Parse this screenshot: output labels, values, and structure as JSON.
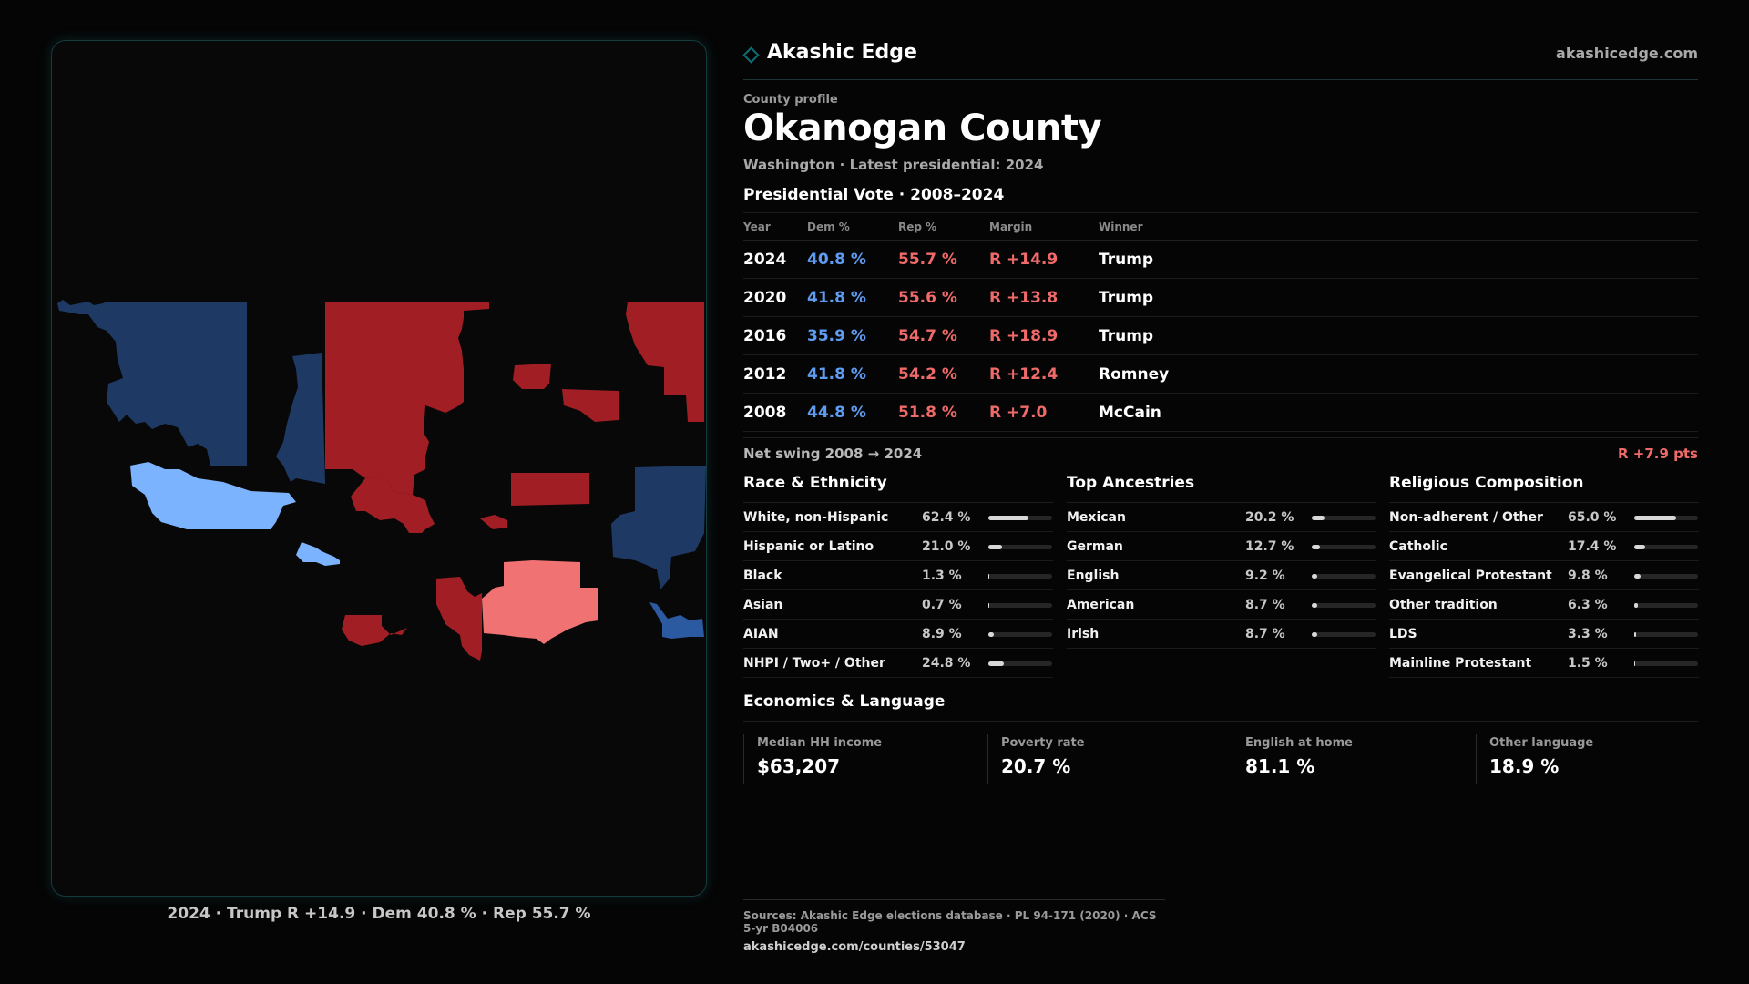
{
  "brand": {
    "name": "Akashic Edge",
    "url": "akashicedge.com"
  },
  "profile": {
    "kicker": "County profile",
    "title": "Okanogan County",
    "subtitle": "Washington · Latest presidential: 2024"
  },
  "map": {
    "caption": "2024 · Trump R +14.9 · Dem 40.8 % · Rep 55.7 %",
    "colors": {
      "dem_dark": "#1e3a64",
      "dem_light": "#7cb3ff",
      "dem_mid": "#2b5aa0",
      "rep_dark": "#a11f24",
      "rep_light": "#f07272"
    }
  },
  "vote": {
    "title": "Presidential Vote · 2008–2024",
    "headers": {
      "year": "Year",
      "dem": "Dem %",
      "rep": "Rep %",
      "margin": "Margin",
      "winner": "Winner"
    },
    "rows": [
      {
        "year": "2024",
        "dem": "40.8 %",
        "rep": "55.7 %",
        "margin": "R +14.9",
        "winner": "Trump"
      },
      {
        "year": "2020",
        "dem": "41.8 %",
        "rep": "55.6 %",
        "margin": "R +13.8",
        "winner": "Trump"
      },
      {
        "year": "2016",
        "dem": "35.9 %",
        "rep": "54.7 %",
        "margin": "R +18.9",
        "winner": "Trump"
      },
      {
        "year": "2012",
        "dem": "41.8 %",
        "rep": "54.2 %",
        "margin": "R +12.4",
        "winner": "Romney"
      },
      {
        "year": "2008",
        "dem": "44.8 %",
        "rep": "51.8 %",
        "margin": "R +7.0",
        "winner": "McCain"
      }
    ],
    "swing_label": "Net swing 2008 → 2024",
    "swing_value": "R +7.9 pts"
  },
  "race": {
    "title": "Race & Ethnicity",
    "rows": [
      {
        "label": "White, non-Hispanic",
        "pct": "62.4 %",
        "value": 62.4
      },
      {
        "label": "Hispanic or Latino",
        "pct": "21.0 %",
        "value": 21.0
      },
      {
        "label": "Black",
        "pct": "1.3 %",
        "value": 1.3
      },
      {
        "label": "Asian",
        "pct": "0.7 %",
        "value": 0.7
      },
      {
        "label": "AIAN",
        "pct": "8.9 %",
        "value": 8.9
      },
      {
        "label": "NHPI / Two+ / Other",
        "pct": "24.8 %",
        "value": 24.8
      }
    ]
  },
  "ancestry": {
    "title": "Top Ancestries",
    "rows": [
      {
        "label": "Mexican",
        "pct": "20.2 %",
        "value": 20.2
      },
      {
        "label": "German",
        "pct": "12.7 %",
        "value": 12.7
      },
      {
        "label": "English",
        "pct": "9.2 %",
        "value": 9.2
      },
      {
        "label": "American",
        "pct": "8.7 %",
        "value": 8.7
      },
      {
        "label": "Irish",
        "pct": "8.7 %",
        "value": 8.7
      }
    ]
  },
  "religion": {
    "title": "Religious Composition",
    "rows": [
      {
        "label": "Non-adherent / Other",
        "pct": "65.0 %",
        "value": 65.0
      },
      {
        "label": "Catholic",
        "pct": "17.4 %",
        "value": 17.4
      },
      {
        "label": "Evangelical Protestant",
        "pct": "9.8 %",
        "value": 9.8
      },
      {
        "label": "Other tradition",
        "pct": "6.3 %",
        "value": 6.3
      },
      {
        "label": "LDS",
        "pct": "3.3 %",
        "value": 3.3
      },
      {
        "label": "Mainline Protestant",
        "pct": "1.5 %",
        "value": 1.5
      }
    ]
  },
  "econ": {
    "title": "Economics & Language",
    "cards": [
      {
        "label": "Median HH income",
        "value": "$63,207"
      },
      {
        "label": "Poverty rate",
        "value": "20.7 %"
      },
      {
        "label": "English at home",
        "value": "81.1 %"
      },
      {
        "label": "Other language",
        "value": "18.9 %"
      }
    ]
  },
  "sources": {
    "line1": "Sources: Akashic Edge elections database · PL 94-171 (2020) · ACS 5-yr B04006",
    "line2": "akashicedge.com/counties/53047"
  }
}
